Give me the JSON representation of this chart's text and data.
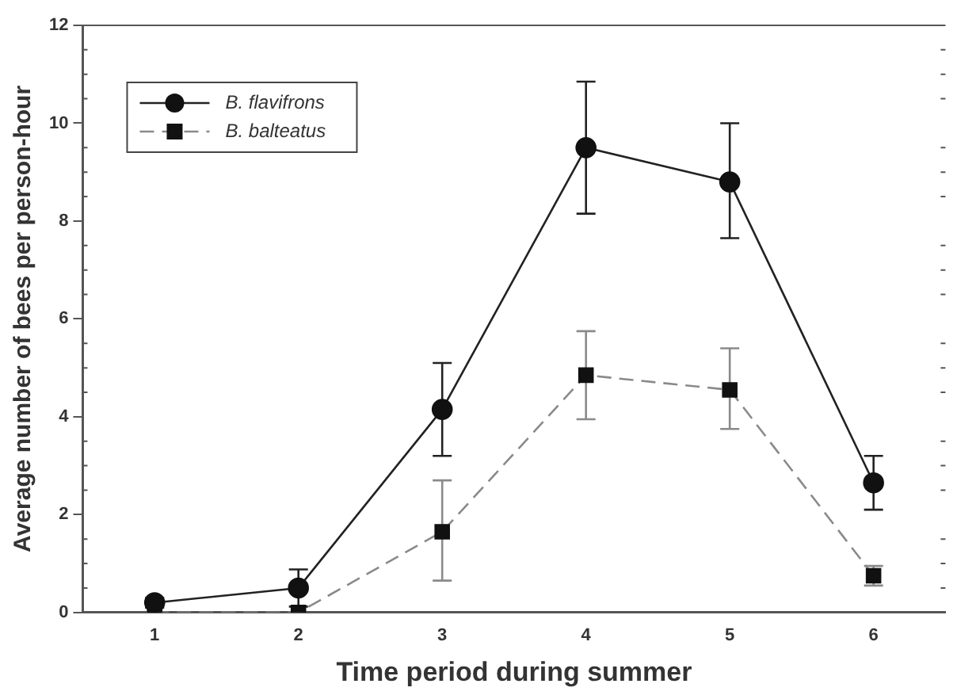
{
  "chart_data": {
    "type": "line",
    "xlabel": "Time period during summer",
    "ylabel": "Average number of bees per person-hour",
    "x": [
      1,
      2,
      3,
      4,
      5,
      6
    ],
    "xlim": [
      0.5,
      6.5
    ],
    "xticks": [
      1,
      2,
      3,
      4,
      5,
      6
    ],
    "ylim": [
      0,
      12
    ],
    "yticks": [
      0,
      2,
      4,
      6,
      8,
      10,
      12
    ],
    "series": [
      {
        "name": "B. flavifrons",
        "color": "#222222",
        "marker": "circle",
        "line_style": "solid",
        "values": [
          0.2,
          0.5,
          4.15,
          9.5,
          8.8,
          2.65
        ],
        "errors": [
          0.1,
          0.38,
          [
            3.2,
            5.1
          ],
          [
            8.15,
            10.85
          ],
          [
            7.65,
            10.0
          ],
          [
            2.1,
            3.2
          ]
        ]
      },
      {
        "name": "B. balteatus",
        "color": "#8a8a8a",
        "marker": "square",
        "line_style": "dashed",
        "values": [
          0,
          0,
          1.65,
          4.85,
          4.55,
          0.75
        ],
        "errors": [
          null,
          null,
          [
            0.65,
            2.7
          ],
          [
            3.95,
            5.75
          ],
          [
            3.75,
            5.4
          ],
          [
            0.55,
            0.95
          ]
        ]
      }
    ],
    "legend": "top left",
    "grid": false
  }
}
